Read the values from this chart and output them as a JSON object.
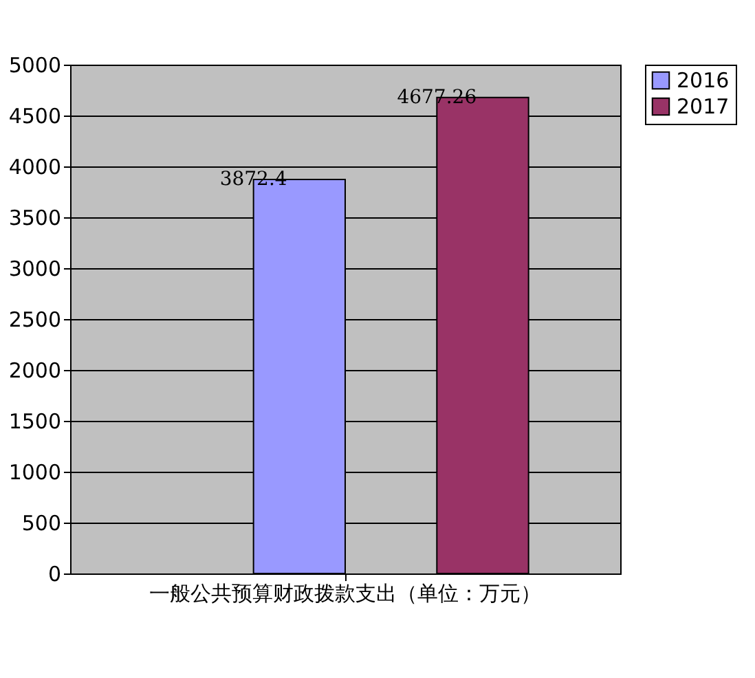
{
  "chart_data": {
    "type": "bar",
    "categories": [
      "一般公共预算财政拨款支出（单位：万元）"
    ],
    "series": [
      {
        "name": "2016",
        "color": "#9999ff",
        "values": [
          3872.4
        ]
      },
      {
        "name": "2017",
        "color": "#993366",
        "values": [
          4677.26
        ]
      }
    ],
    "ylim": [
      0,
      5000
    ],
    "yticks": [
      0,
      500,
      1000,
      1500,
      2000,
      2500,
      3000,
      3500,
      4000,
      4500,
      5000
    ],
    "grid": "y",
    "legend": "right",
    "data_labels": true
  }
}
